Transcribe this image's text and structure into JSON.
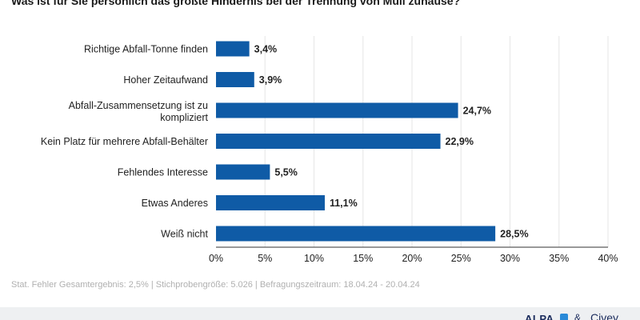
{
  "chart_data": {
    "type": "bar",
    "orientation": "horizontal",
    "title": "Was ist für Sie persönlich das größte Hindernis bei der Trennung von Müll zuhause?",
    "categories": [
      "Richtige Abfall-Tonne finden",
      "Hoher Zeitaufwand",
      "Abfall-Zusammensetzung ist zu kompliziert",
      "Kein Platz für mehrere Abfall-Behälter",
      "Fehlendes Interesse",
      "Etwas Anderes",
      "Weiß nicht"
    ],
    "values": [
      3.4,
      3.9,
      24.7,
      22.9,
      5.5,
      11.1,
      28.5
    ],
    "value_labels": [
      "3,4%",
      "3,9%",
      "24,7%",
      "22,9%",
      "5,5%",
      "11,1%",
      "28,5%"
    ],
    "xlim": [
      0,
      40
    ],
    "ticks": [
      0,
      5,
      10,
      15,
      20,
      25,
      30,
      35,
      40
    ],
    "tick_labels": [
      "0%",
      "5%",
      "10%",
      "15%",
      "20%",
      "25%",
      "30%",
      "35%",
      "40%"
    ],
    "bar_color": "#0f5ba6",
    "grid": true,
    "xlabel": "",
    "ylabel": ""
  },
  "footnote": "Stat. Fehler Gesamtergebnis: 2,5% | Stichprobengröße: 5.026 | Befragungszeitraum: 18.04.24 - 20.04.24",
  "branding": {
    "alpa": "ALPA",
    "amp": "&",
    "civey": "Civey"
  }
}
